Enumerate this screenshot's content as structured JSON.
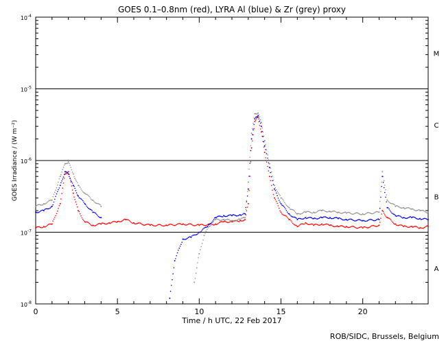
{
  "chart_data": {
    "type": "scatter",
    "title": "GOES 0.1–0.8nm (red), LYRA Al (blue) & Zr (grey) proxy",
    "xlabel": "Time / h UTC, 22 Feb 2017",
    "ylabel": "GOES Irradiance / (W m⁻²)",
    "credit": "ROB/SIDC, Brussels, Belgium",
    "xlim": [
      0,
      24
    ],
    "ylim": [
      1e-08,
      0.0001
    ],
    "yscale": "log",
    "x_ticks": [
      0,
      5,
      10,
      15,
      20
    ],
    "y_tick_exponents": [
      "-8",
      "-7",
      "-6",
      "-5",
      "-4"
    ],
    "flare_classes": [
      {
        "label": "A",
        "low": 1e-08,
        "high": 1e-07
      },
      {
        "label": "B",
        "low": 1e-07,
        "high": 1e-06
      },
      {
        "label": "C",
        "low": 1e-06,
        "high": 1e-05
      },
      {
        "label": "M",
        "low": 1e-05,
        "high": 0.0001
      }
    ],
    "class_boundaries": [
      1e-07,
      1e-06,
      1e-05
    ],
    "series": [
      {
        "color": "#ff0000",
        "x": [
          0,
          0.5,
          1,
          1.5,
          1.8,
          2,
          2.3,
          2.6,
          3,
          3.5,
          4,
          4.5,
          5,
          5.5,
          6,
          7,
          8,
          9,
          10,
          11,
          11.5,
          12,
          12.5,
          12.8,
          13,
          13.2,
          13.4,
          13.6,
          13.8,
          14,
          14.3,
          14.6,
          15,
          15.5,
          16,
          16.5,
          17,
          17.5,
          18,
          18.5,
          19,
          20,
          21,
          21.2,
          21.5,
          22,
          22.5,
          23,
          23.5,
          24
        ],
        "y": [
          1.15e-07,
          1.2e-07,
          1.3e-07,
          2.5e-07,
          6.5e-07,
          7e-07,
          3.5e-07,
          2e-07,
          1.4e-07,
          1.25e-07,
          1.3e-07,
          1.35e-07,
          1.4e-07,
          1.5e-07,
          1.35e-07,
          1.25e-07,
          1.25e-07,
          1.3e-07,
          1.25e-07,
          1.3e-07,
          1.4e-07,
          1.4e-07,
          1.45e-07,
          1.5e-07,
          2.5e-07,
          1.5e-06,
          3.5e-06,
          4e-06,
          2.5e-06,
          1.3e-06,
          6e-07,
          3e-07,
          1.9e-07,
          1.5e-07,
          1.2e-07,
          1.35e-07,
          1.25e-07,
          1.3e-07,
          1.25e-07,
          1.2e-07,
          1.2e-07,
          1.15e-07,
          1.25e-07,
          2e-07,
          1.6e-07,
          1.3e-07,
          1.2e-07,
          1.2e-07,
          1.15e-07,
          1.2e-07
        ]
      },
      {
        "color": "#0000e0",
        "x": [
          0,
          0.5,
          1,
          1.5,
          1.8,
          2,
          2.3,
          2.6,
          3,
          3.5,
          4,
          8.2,
          8.5,
          9,
          9.5,
          10,
          10.5,
          11,
          11.5,
          12,
          12.5,
          12.8,
          13,
          13.2,
          13.4,
          13.6,
          13.8,
          14,
          14.3,
          14.6,
          15,
          15.5,
          16,
          16.5,
          17,
          17.5,
          18,
          18.5,
          19,
          20,
          21,
          21.2,
          21.5,
          22,
          22.5,
          23,
          23.5,
          24
        ],
        "y": [
          1.9e-07,
          2e-07,
          2.3e-07,
          4.5e-07,
          7e-07,
          6.5e-07,
          4.5e-07,
          3.2e-07,
          2.5e-07,
          1.9e-07,
          1.6e-07,
          1.2e-08,
          4e-08,
          8e-08,
          8.5e-08,
          1e-07,
          1.2e-07,
          1.6e-07,
          1.7e-07,
          1.7e-07,
          1.75e-07,
          1.8e-07,
          4e-07,
          2e-06,
          3.8e-06,
          4.2e-06,
          3e-06,
          1.6e-06,
          8e-07,
          4e-07,
          2.5e-07,
          1.8e-07,
          1.5e-07,
          1.6e-07,
          1.55e-07,
          1.6e-07,
          1.6e-07,
          1.55e-07,
          1.5e-07,
          1.45e-07,
          1.5e-07,
          6e-07,
          2.2e-07,
          1.7e-07,
          1.6e-07,
          1.6e-07,
          1.55e-07,
          1.5e-07
        ]
      },
      {
        "color": "#909090",
        "x": [
          0,
          0.5,
          1,
          1.5,
          1.8,
          2,
          2.3,
          2.6,
          3,
          3.5,
          4,
          9.7,
          10,
          10.3,
          10.6,
          11,
          11.5,
          12,
          12.5,
          12.8,
          13,
          13.2,
          13.4,
          13.6,
          13.8,
          14,
          14.3,
          14.6,
          15,
          15.5,
          16,
          16.5,
          17,
          17.5,
          18,
          18.5,
          19,
          20,
          21,
          21.2,
          21.5,
          22,
          22.5,
          23,
          23.5,
          24
        ],
        "y": [
          2.3e-07,
          2.5e-07,
          2.8e-07,
          6e-07,
          9e-07,
          9.5e-07,
          6.5e-07,
          4.5e-07,
          3.5e-07,
          2.8e-07,
          2.3e-07,
          2e-08,
          5e-08,
          9e-08,
          1.2e-07,
          1.5e-07,
          1.5e-07,
          1.45e-07,
          1.5e-07,
          1.6e-07,
          5e-07,
          2.4e-06,
          4.5e-06,
          4.6e-06,
          3.4e-06,
          1.9e-06,
          9e-07,
          4.5e-07,
          3e-07,
          2.2e-07,
          1.8e-07,
          1.9e-07,
          1.9e-07,
          2e-07,
          1.95e-07,
          1.9e-07,
          1.85e-07,
          1.8e-07,
          1.9e-07,
          7e-07,
          2.8e-07,
          2.3e-07,
          2.2e-07,
          2.1e-07,
          2e-07,
          1.9e-07
        ]
      }
    ]
  }
}
